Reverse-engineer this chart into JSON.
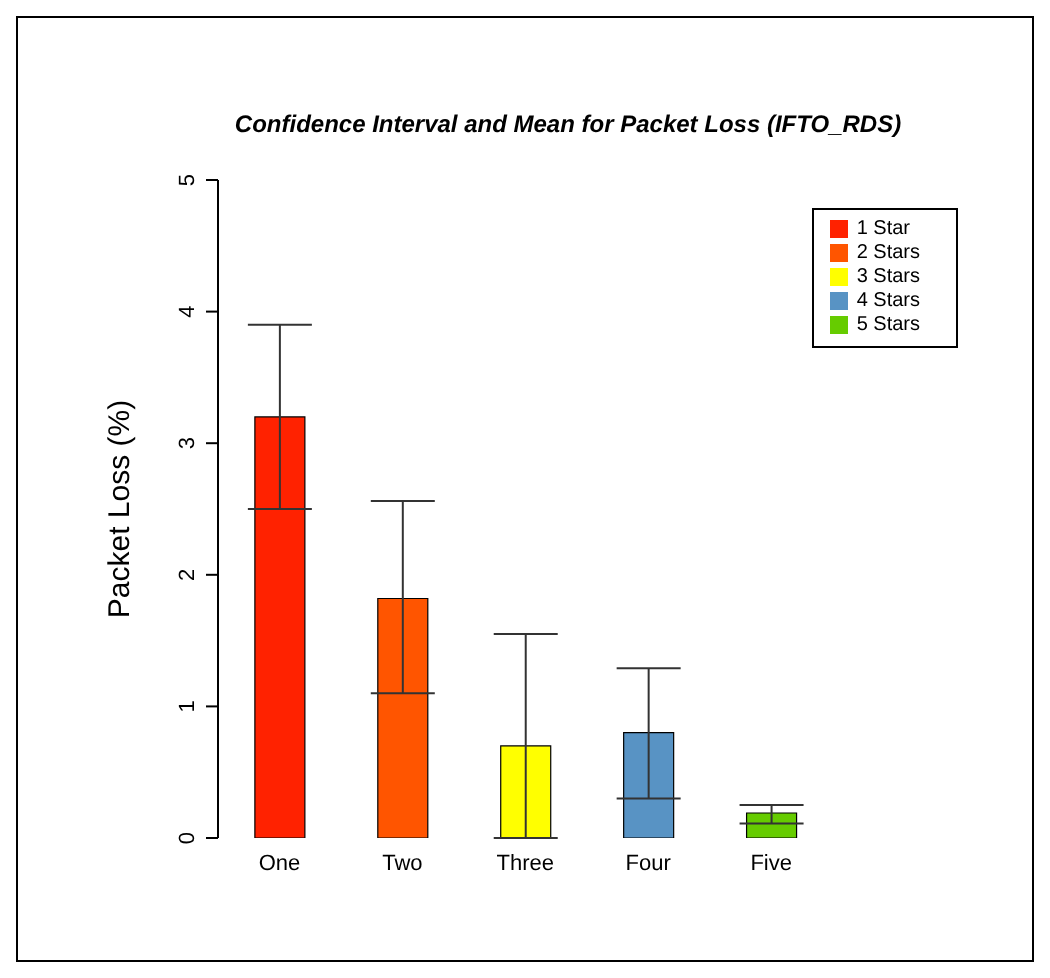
{
  "chart_data": {
    "type": "bar",
    "title": "Confidence Interval and Mean for Packet Loss (IFTO_RDS)",
    "ylabel": "Packet Loss (%)",
    "categories": [
      "One",
      "Two",
      "Three",
      "Four",
      "Five"
    ],
    "stacked": true,
    "legend": "top right",
    "grid": false,
    "series": [
      {
        "name": "1 Star",
        "color": "#ff2200",
        "values": [
          3.2,
          null,
          null,
          null,
          null
        ],
        "errors": [
          [
            2.5,
            3.9
          ],
          null,
          null,
          null,
          null
        ]
      },
      {
        "name": "2 Stars",
        "color": "#ff5500",
        "values": [
          null,
          1.82,
          null,
          null,
          null
        ],
        "errors": [
          null,
          [
            1.1,
            2.56
          ],
          null,
          null,
          null
        ]
      },
      {
        "name": "3 Stars",
        "color": "#ffff00",
        "values": [
          null,
          null,
          0.7,
          null,
          null
        ],
        "errors": [
          null,
          null,
          [
            0,
            1.55
          ],
          null,
          null
        ]
      },
      {
        "name": "4 Stars",
        "color": "#5893c4",
        "values": [
          null,
          null,
          null,
          0.8,
          null
        ],
        "errors": [
          null,
          null,
          null,
          [
            0.3,
            1.29
          ],
          null
        ]
      },
      {
        "name": "5 Stars",
        "color": "#66cc00",
        "values": [
          null,
          null,
          null,
          null,
          0.19
        ],
        "errors": [
          null,
          null,
          null,
          null,
          [
            0.11,
            0.25
          ]
        ]
      }
    ],
    "ylim": [
      0,
      5
    ],
    "yticks": [
      0,
      1,
      2,
      3,
      4,
      5
    ]
  }
}
